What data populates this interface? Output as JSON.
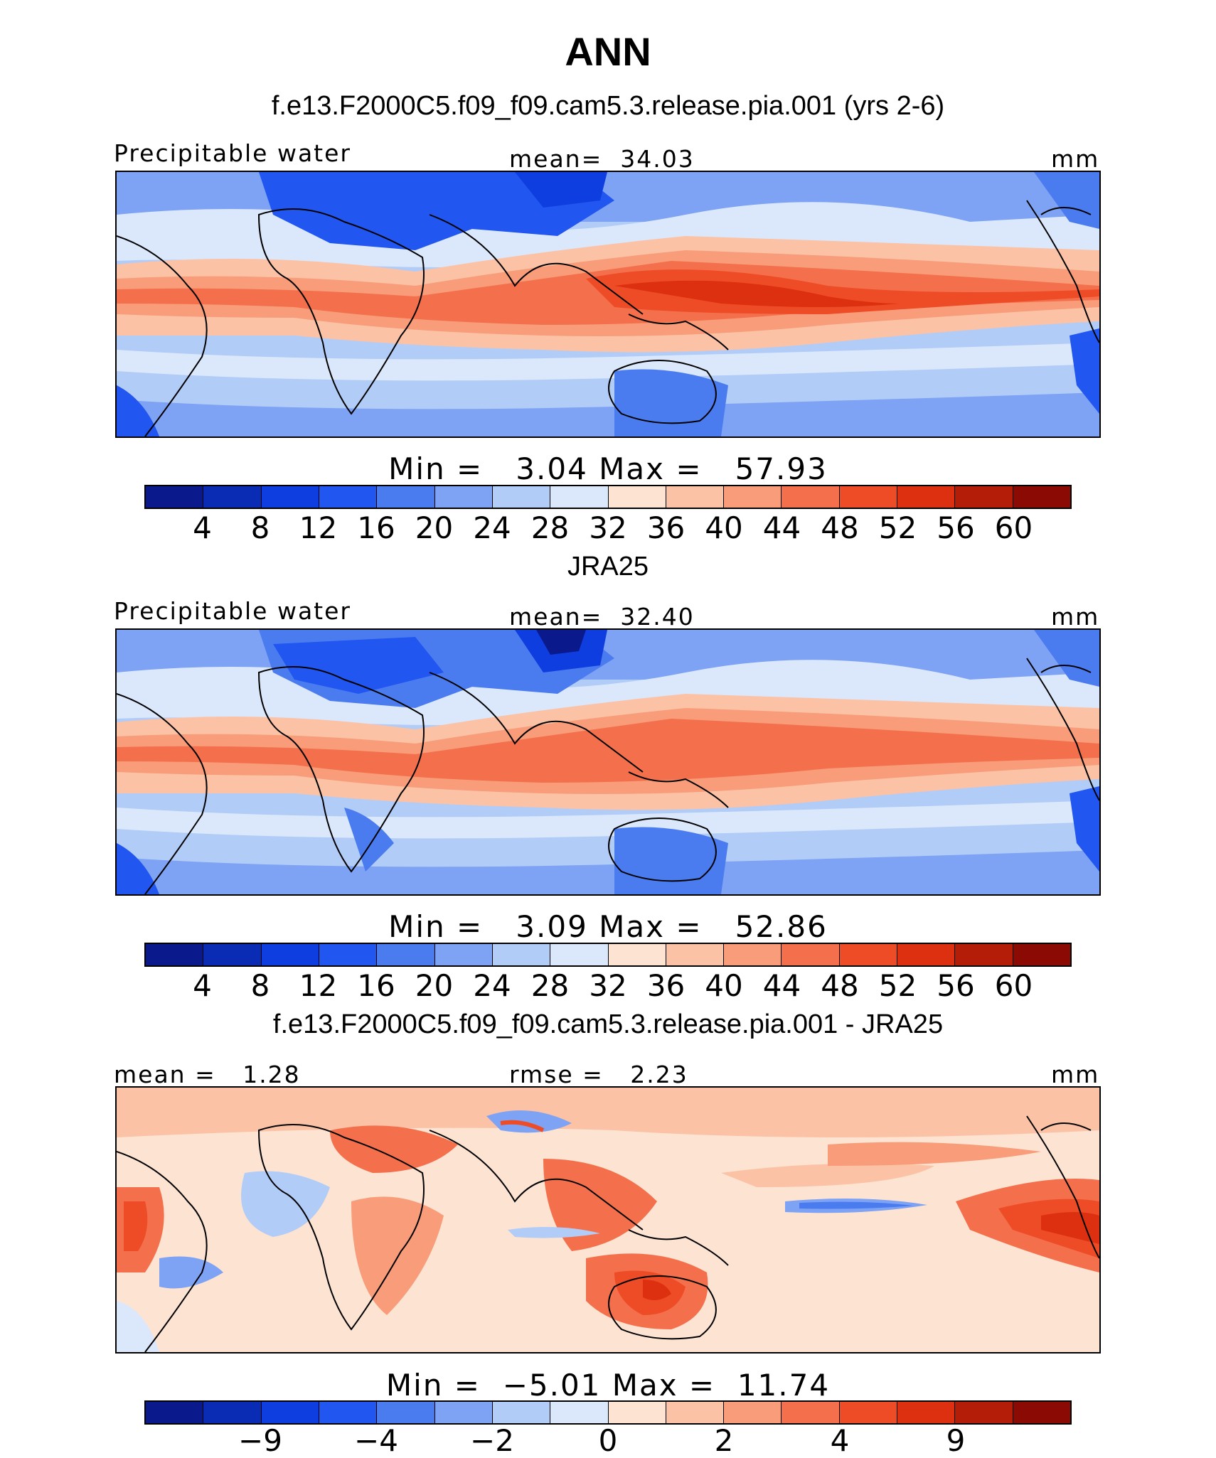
{
  "figure": {
    "title": "ANN"
  },
  "palette_abs": [
    "#0a1a8c",
    "#0a2cb4",
    "#0f3ee0",
    "#2156f0",
    "#4a7cf0",
    "#7ea2f4",
    "#b2ccf8",
    "#dbe8fc",
    "#fde3d2",
    "#fbc2a6",
    "#f89c7a",
    "#f4704c",
    "#ee4c26",
    "#dc3010",
    "#b41e08",
    "#8c0a04"
  ],
  "palette_diff": [
    "#0a1a8c",
    "#0a2cb4",
    "#0f3ee0",
    "#2156f0",
    "#4a7cf0",
    "#7ea2f4",
    "#b2ccf8",
    "#dbe8fc",
    "#fde3d2",
    "#fbc2a6",
    "#f89c7a",
    "#f4704c",
    "#ee4c26",
    "#dc3010",
    "#b41e08",
    "#8c0a04"
  ],
  "panels": [
    {
      "subtitle": "f.e13.F2000C5.f09_f09.cam5.3.release.pia.001 (yrs 2-6)",
      "left_label": "Precipitable water",
      "center_label": "mean=  34.03",
      "right_label": "mm",
      "stats": "Min =   3.04 Max =   57.93",
      "cbar_ticks": [
        "4",
        "8",
        "12",
        "16",
        "20",
        "24",
        "28",
        "32",
        "36",
        "40",
        "44",
        "48",
        "52",
        "56",
        "60"
      ]
    },
    {
      "subtitle": "JRA25",
      "left_label": "Precipitable water",
      "center_label": "mean=  32.40",
      "right_label": "mm",
      "stats": "Min =   3.09 Max =   52.86",
      "cbar_ticks": [
        "4",
        "8",
        "12",
        "16",
        "20",
        "24",
        "28",
        "32",
        "36",
        "40",
        "44",
        "48",
        "52",
        "56",
        "60"
      ]
    },
    {
      "subtitle": "f.e13.F2000C5.f09_f09.cam5.3.release.pia.001 - JRA25",
      "left_label": "mean =   1.28",
      "center_label": "rmse =   2.23",
      "right_label": "mm",
      "stats": "Min =  −5.01 Max =  11.74",
      "cbar_ticks": [
        "−9",
        "−4",
        "−2",
        "0",
        "2",
        "4",
        "9"
      ]
    }
  ]
}
